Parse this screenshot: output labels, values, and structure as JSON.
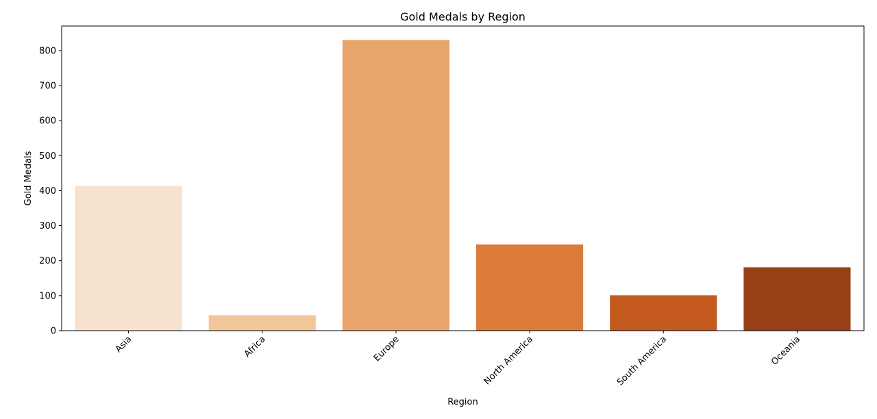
{
  "chart_data": {
    "type": "bar",
    "title": "Gold Medals by Region",
    "xlabel": "Region",
    "ylabel": "Gold Medals",
    "categories": [
      "Asia",
      "Africa",
      "Europe",
      "North America",
      "South America",
      "Oceania"
    ],
    "values": [
      413,
      44,
      830,
      246,
      101,
      181
    ],
    "colors": [
      "#f7e1cf",
      "#f0c69a",
      "#e8a46b",
      "#dc7a3a",
      "#c55a1f",
      "#973f17"
    ],
    "ylim": [
      0,
      870
    ],
    "yticks": [
      0,
      100,
      200,
      300,
      400,
      500,
      600,
      700,
      800
    ],
    "grid": false,
    "legend": "none"
  }
}
